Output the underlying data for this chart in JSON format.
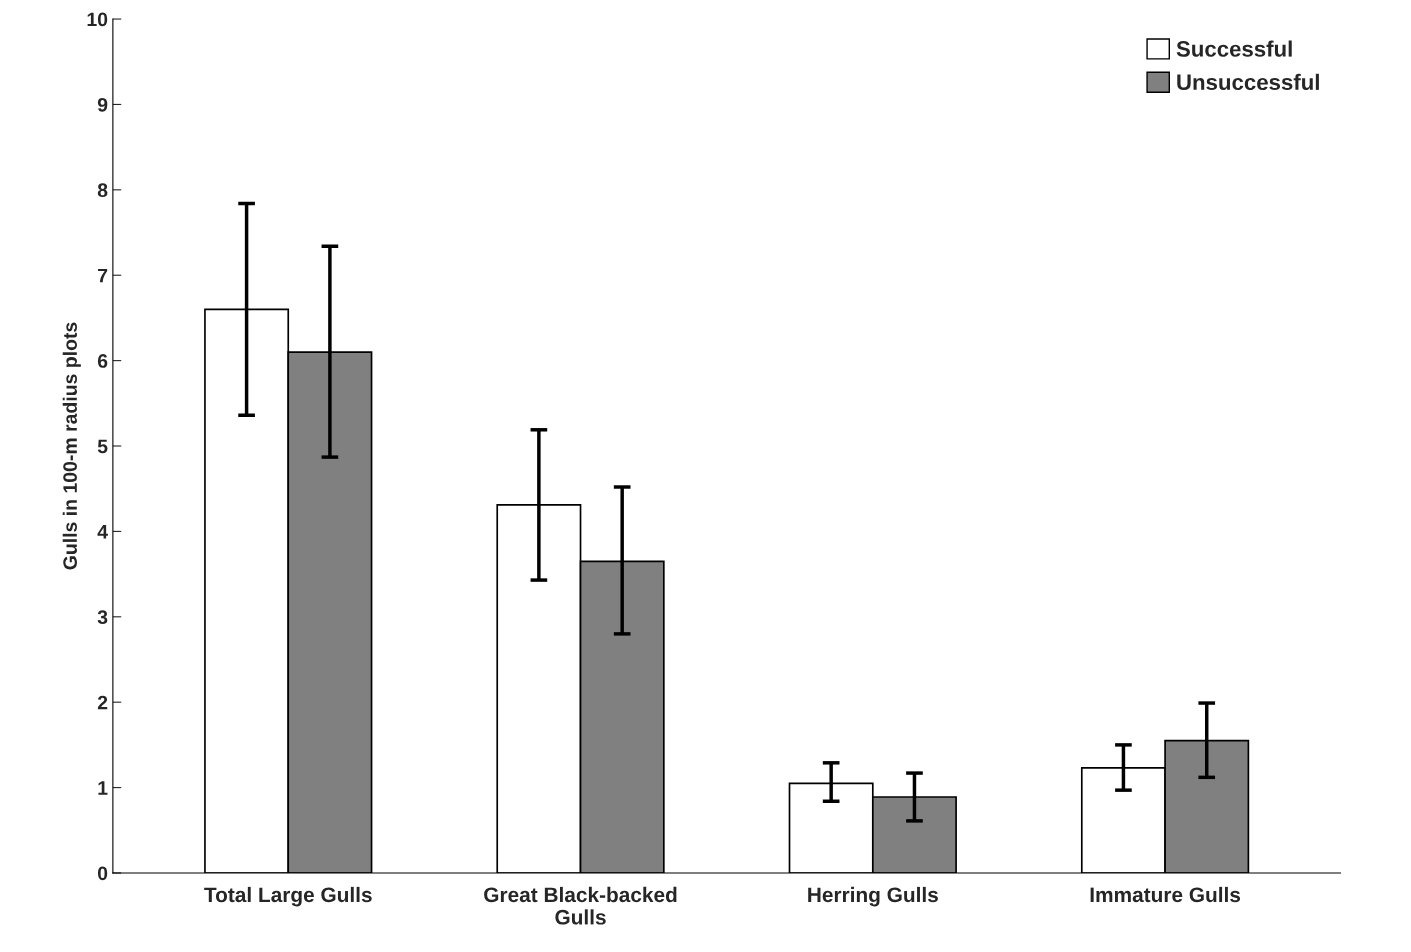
{
  "chart_data": {
    "type": "bar",
    "ylabel": "Gulls in 100-m radius plots",
    "categories": [
      "Total Large Gulls",
      "Great Black-backed\nGulls",
      "Herring Gulls",
      "Immature Gulls"
    ],
    "series": [
      {
        "name": "Successful",
        "color": "#ffffff",
        "values": [
          6.6,
          4.31,
          1.05,
          1.23
        ],
        "errors": [
          [
            5.36,
            7.84
          ],
          [
            3.43,
            5.19
          ],
          [
            0.84,
            1.29
          ],
          [
            0.97,
            1.5
          ]
        ]
      },
      {
        "name": "Unsuccessful",
        "color": "#808080",
        "values": [
          6.1,
          3.65,
          0.89,
          1.55
        ],
        "errors": [
          [
            4.87,
            7.34
          ],
          [
            2.8,
            4.52
          ],
          [
            0.61,
            1.17
          ],
          [
            1.12,
            1.99
          ]
        ]
      }
    ],
    "ylim": [
      0,
      10
    ],
    "yticks": [
      0,
      1,
      2,
      3,
      4,
      5,
      6,
      7,
      8,
      9,
      10
    ],
    "legend": "top right",
    "grid": false
  }
}
